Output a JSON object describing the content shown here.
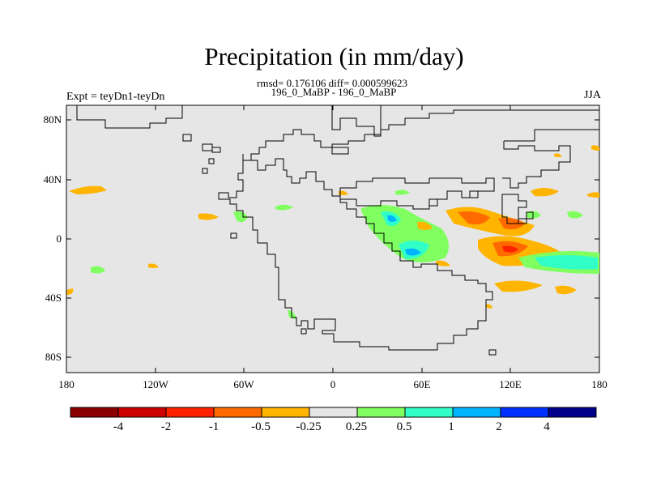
{
  "title": "Precipitation (in mm/day)",
  "stats": "rmsd= 0.176106 diff= 0.000599623",
  "case": "196_0_MaBP - 196_0_MaBP",
  "experiment": "Expt = teyDn1-teyDn",
  "season": "JJA",
  "colors": {
    "background": "#e6e6e6",
    "coastline": "#000000"
  },
  "axes": {
    "lat_ticks": [
      "80N",
      "40N",
      "0",
      "40S",
      "80S"
    ],
    "lon_ticks": [
      "180",
      "120W",
      "60W",
      "0",
      "60E",
      "120E",
      "180"
    ]
  },
  "colorbar": {
    "labels": [
      "-4",
      "-2",
      "-1",
      "-0.5",
      "-0.25",
      "0.25",
      "0.5",
      "1",
      "2",
      "4"
    ],
    "colors": [
      "#8b0000",
      "#cc0000",
      "#ff2000",
      "#ff6a00",
      "#ffb400",
      "#e6e6e6",
      "#80ff60",
      "#30ffc8",
      "#00b4ff",
      "#0030ff",
      "#00008b"
    ]
  }
}
